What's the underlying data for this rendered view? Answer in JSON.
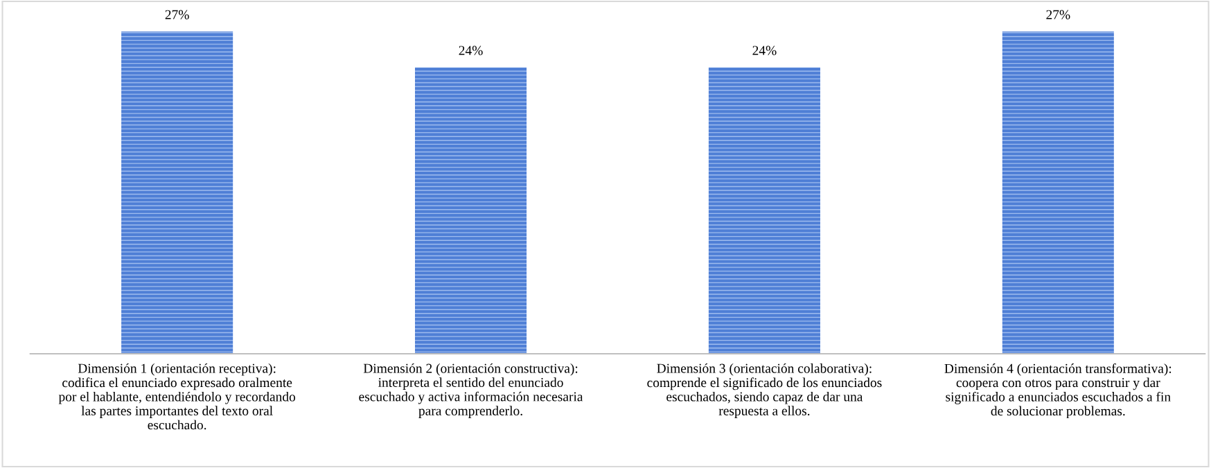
{
  "chart_data": {
    "type": "bar",
    "categories": [
      "Dimensión 1 (orientación receptiva):\ncodifica el enunciado expresado oralmente\npor el hablante, entendiéndolo y recordando\nlas partes importantes del texto oral\nescuchado.",
      "Dimensión 2 (orientación constructiva):\ninterpreta el sentido del enunciado\nescuchado y activa información necesaria\npara comprenderlo.",
      "Dimensión 3 (orientación colaborativa):\ncomprende el significado de los enunciados\nescuchados, siendo capaz de dar una\nrespuesta a ellos.",
      "Dimensión 4 (orientación transformativa):\ncoopera con otros para construir y dar\nsignificado a enunciados escuchados a fin\nde solucionar problemas."
    ],
    "values": [
      27,
      24,
      24,
      27
    ],
    "value_labels": [
      "27%",
      "24%",
      "24%",
      "27%"
    ],
    "color": "#4f7fd6",
    "tick_labels": "x",
    "grid": false,
    "legend": false
  }
}
